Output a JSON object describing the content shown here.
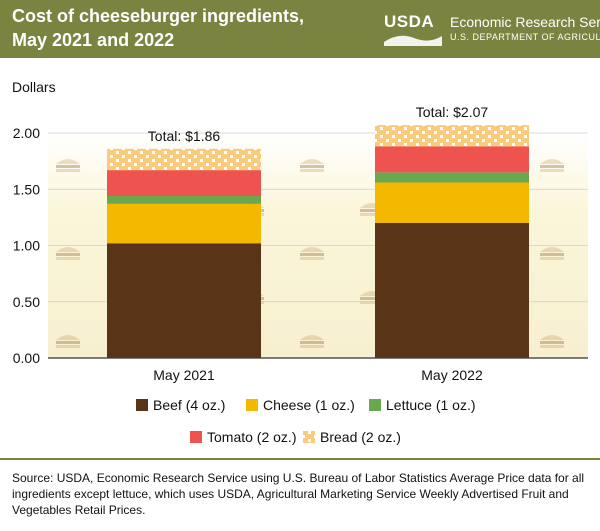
{
  "header": {
    "title_line1": "Cost of cheeseburger ingredients,",
    "title_line2": "May 2021 and 2022",
    "logo_text": "USDA",
    "agency_name": "Economic Research Service",
    "department": "U.S. DEPARTMENT OF AGRICULTURE"
  },
  "chart_data": {
    "type": "bar",
    "stacked": true,
    "ylabel": "Dollars",
    "ylim": [
      0,
      2.0
    ],
    "yticks": [
      0,
      0.5,
      1.0,
      1.5,
      2.0
    ],
    "ytick_labels": [
      "0.00",
      "0.50",
      "1.00",
      "1.50",
      "2.00"
    ],
    "categories": [
      "May 2021",
      "May 2022"
    ],
    "series": [
      {
        "name": "Beef (4 oz.)",
        "color": "#5a3416",
        "values": [
          1.02,
          1.2
        ]
      },
      {
        "name": "Cheese (1 oz.)",
        "color": "#f5b800",
        "values": [
          0.35,
          0.36
        ]
      },
      {
        "name": "Lettuce (1 oz.)",
        "color": "#6aa84f",
        "values": [
          0.07,
          0.09
        ]
      },
      {
        "name": "Tomato (2 oz.)",
        "color": "#ef5350",
        "values": [
          0.23,
          0.23
        ]
      },
      {
        "name": "Bread (2 oz.)",
        "color": "#f8cb7f",
        "values": [
          0.19,
          0.19
        ]
      }
    ],
    "totals": [
      "Total: $1.86",
      "Total: $2.07"
    ],
    "legend_position": "bottom"
  },
  "footer": {
    "source": "Source: USDA, Economic Research Service using U.S. Bureau of Labor Statistics Average Price data for all ingredients except lettuce, which uses USDA, Agricultural Marketing Service Weekly Advertised Fruit and Vegetables Retail Prices."
  }
}
